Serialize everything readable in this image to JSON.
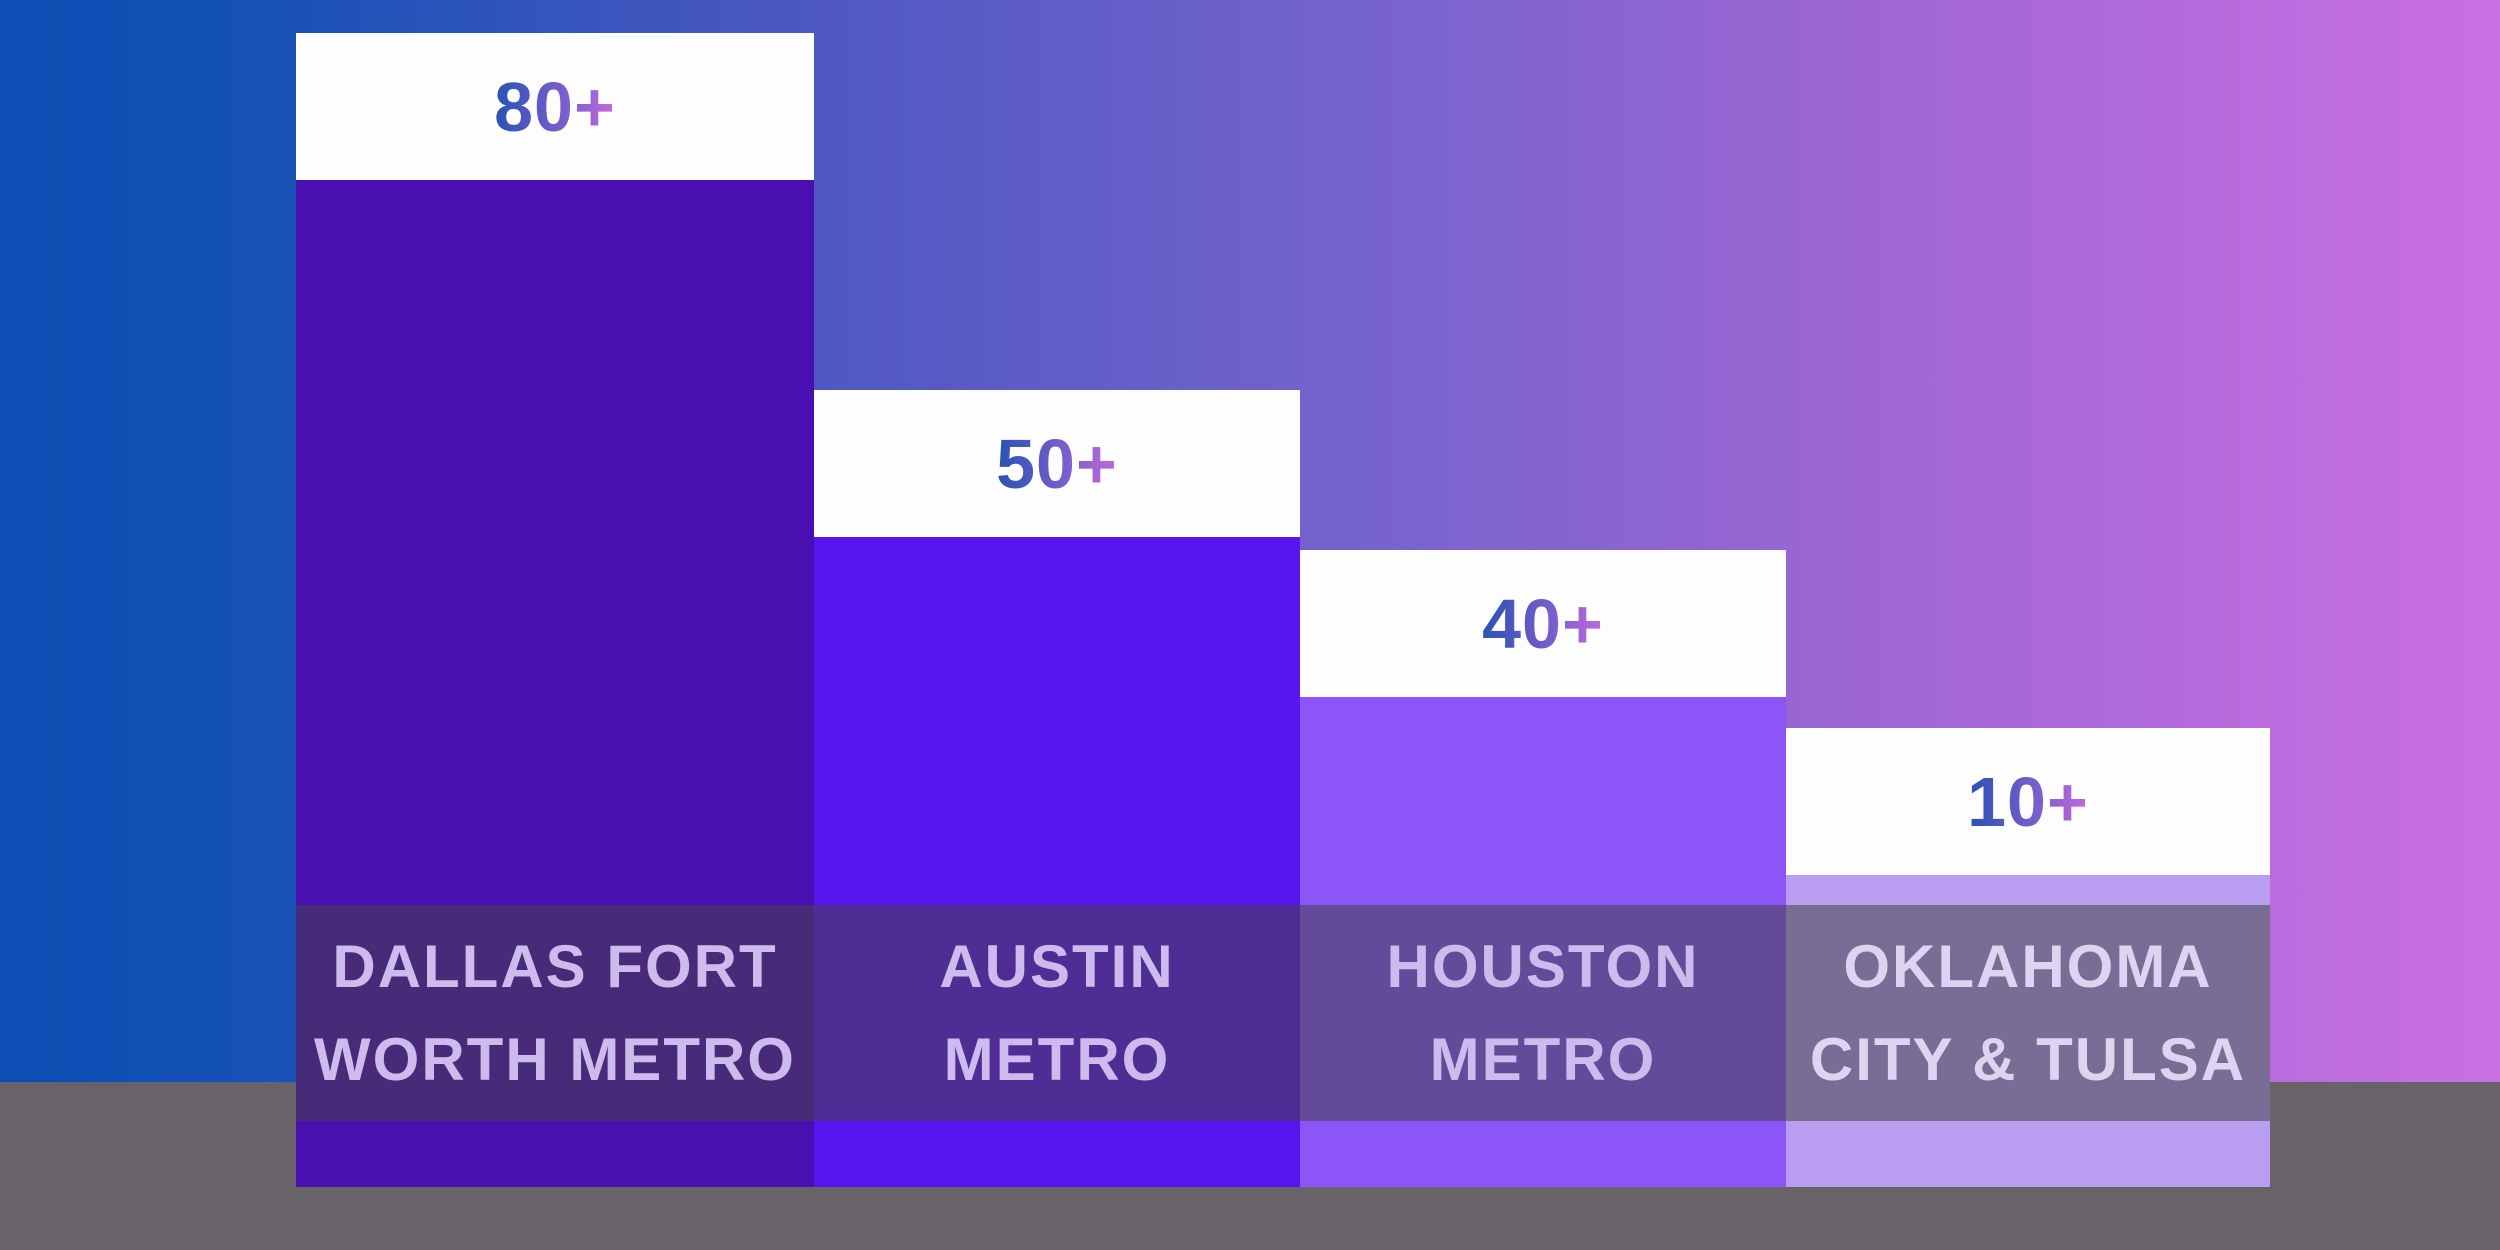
{
  "chart_data": {
    "type": "bar",
    "title": "",
    "categories": [
      "Dallas Fort Worth Metro",
      "Austin Metro",
      "Houston Metro",
      "Oklahoma City & Tulsa"
    ],
    "values": [
      80,
      50,
      40,
      10
    ],
    "bars": [
      {
        "value_label": "80+",
        "label_lines": [
          "DALLAS FORT",
          "WORTH METRO"
        ],
        "color": "#4a0fb0"
      },
      {
        "value_label": "50+",
        "label_lines": [
          "AUSTIN",
          "METRO"
        ],
        "color": "#5915ed"
      },
      {
        "value_label": "40+",
        "label_lines": [
          "HOUSTON",
          "METRO"
        ],
        "color": "#8b55f8"
      },
      {
        "value_label": "10+",
        "label_lines": [
          "OKLAHOMA",
          "CITY & TULSA"
        ],
        "color": "#b89df0"
      }
    ],
    "legend": "none",
    "grid": "off",
    "axes_visible": false,
    "layout_hints": {
      "bar_order": "descending left to right",
      "value_cards": "white header card on top of each bar",
      "label_band": "translucent dark band overlaying lower third of bars"
    },
    "colors": {
      "background_gradient_left": "#0c4eb4",
      "background_gradient_right": "#ca70e3",
      "floor_band": "#676369",
      "value_card_bg": "#fdfdfe",
      "value_text_gradient_start": "#2853b2",
      "value_text_gradient_end": "#c469da",
      "label_band_overlay": "rgba(70,68,74,0.55)",
      "label_text": "#cdbbee"
    }
  }
}
